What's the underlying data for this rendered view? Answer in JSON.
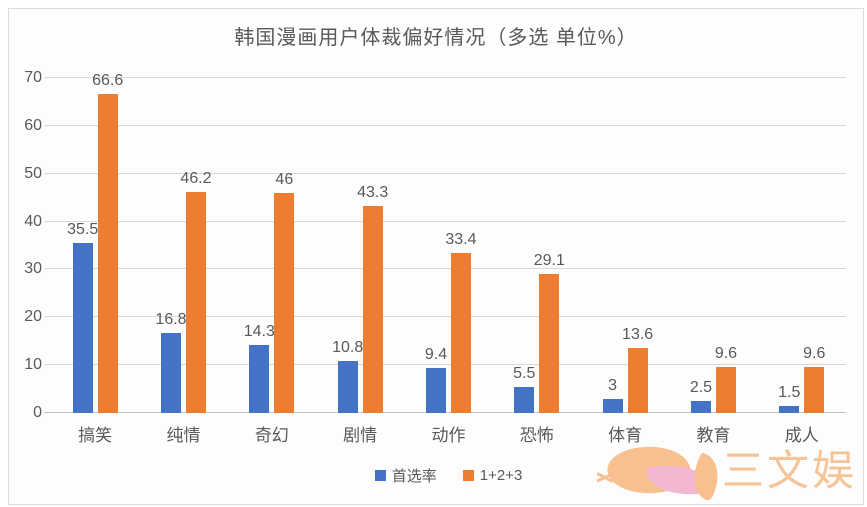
{
  "chart_data": {
    "type": "bar",
    "title": "韩国漫画用户体裁偏好情况（多选 单位%）",
    "categories": [
      "搞笑",
      "纯情",
      "奇幻",
      "剧情",
      "动作",
      "恐怖",
      "体育",
      "教育",
      "成人"
    ],
    "series": [
      {
        "name": "首选率",
        "color": "#4472C4",
        "values": [
          35.5,
          16.8,
          14.3,
          10.8,
          9.4,
          5.5,
          3,
          2.5,
          1.5
        ]
      },
      {
        "name": "1+2+3",
        "color": "#ED7D31",
        "values": [
          66.6,
          46.2,
          46,
          43.3,
          33.4,
          29.1,
          13.6,
          9.6,
          9.6
        ]
      }
    ],
    "xlabel": "",
    "ylabel": "",
    "ylim": [
      0,
      70
    ],
    "yticks": [
      0,
      10,
      20,
      30,
      40,
      50,
      60,
      70
    ],
    "grid": true,
    "legend_position": "bottom",
    "data_labels": true
  },
  "watermark": {
    "text": "三文娱"
  },
  "colors": {
    "series1": "#4472C4",
    "series2": "#ED7D31",
    "text": "#595959",
    "gridline": "#D9D9D9",
    "axis_line": "#BFBFBF",
    "watermark_orange": "#F8C08F",
    "watermark_pink": "#F2B8D2",
    "watermark_text": "#F4B77E",
    "frame_border": "#DCDCDC"
  }
}
